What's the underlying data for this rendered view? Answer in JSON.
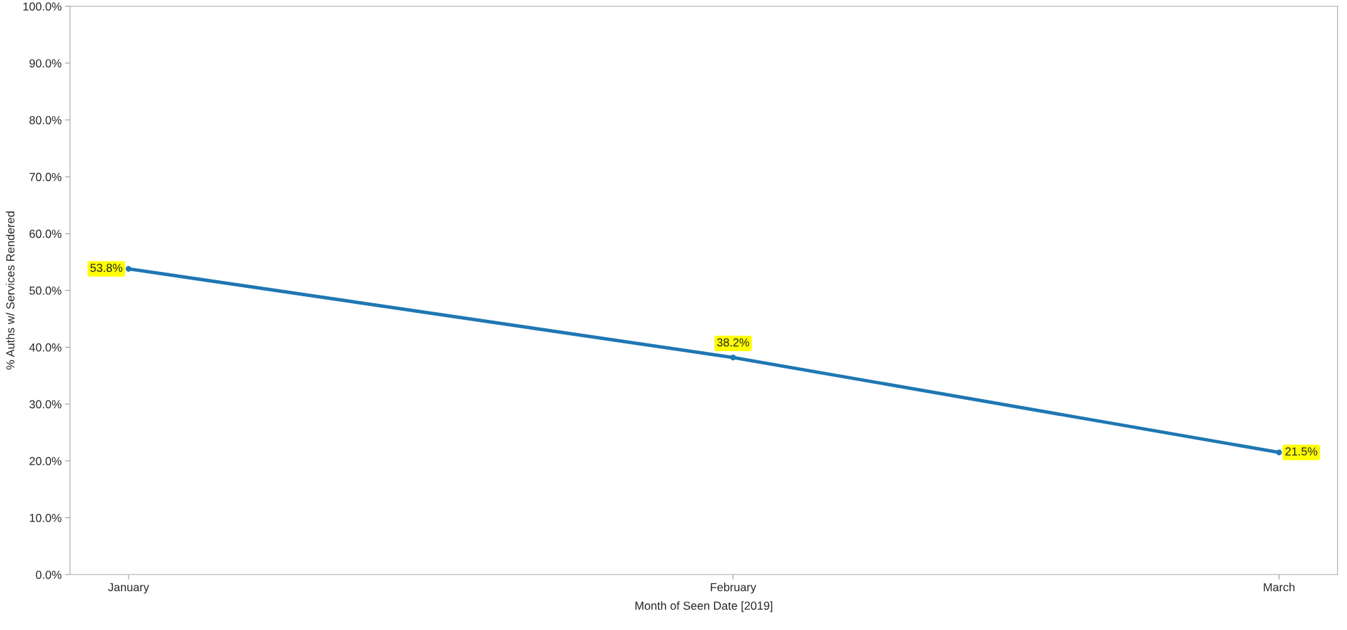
{
  "chart_data": {
    "type": "line",
    "xlabel": "Month of Seen Date [2019]",
    "ylabel": "% Auths w/ Services Rendered",
    "x": [
      "2019-01",
      "2019-02",
      "2019-03"
    ],
    "series": [
      {
        "color": "#1f77b4",
        "values": [
          53.8,
          38.2,
          21.5
        ],
        "value_labels": [
          "53.8%",
          "38.2%",
          "21.5%"
        ]
      }
    ],
    "xlim": [
      "2018-12-29",
      "2019-03-04"
    ],
    "xticks": [
      {
        "value": "2019-01",
        "label": "January"
      },
      {
        "value": "2019-02",
        "label": "February"
      },
      {
        "value": "2019-03",
        "label": "March"
      }
    ],
    "ylim": [
      0,
      100
    ],
    "yticks": [
      {
        "value": 0,
        "label": "0.0%"
      },
      {
        "value": 10,
        "label": "10.0%"
      },
      {
        "value": 20,
        "label": "20.0%"
      },
      {
        "value": 30,
        "label": "30.0%"
      },
      {
        "value": 40,
        "label": "40.0%"
      },
      {
        "value": 50,
        "label": "50.0%"
      },
      {
        "value": 60,
        "label": "60.0%"
      },
      {
        "value": 70,
        "label": "70.0%"
      },
      {
        "value": 80,
        "label": "80.0%"
      },
      {
        "value": 90,
        "label": "90.0%"
      },
      {
        "value": 100,
        "label": "100.0%"
      }
    ],
    "marker": "circle",
    "line_style": "solid",
    "grid": false
  }
}
